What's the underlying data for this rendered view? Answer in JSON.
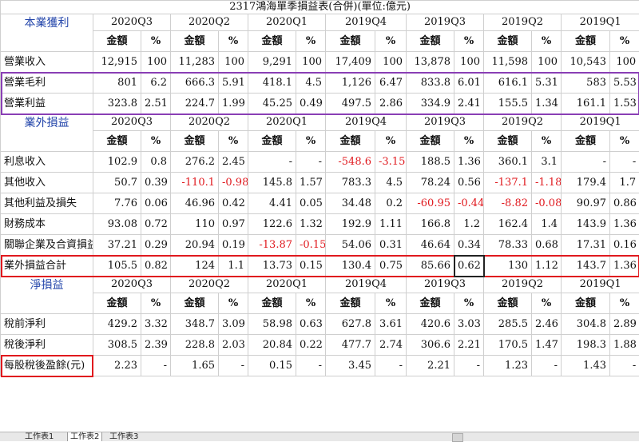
{
  "title": "2317鴻海單季損益表(合併)(單位:億元)",
  "periods": [
    "2020Q3",
    "2020Q2",
    "2020Q1",
    "2019Q4",
    "2019Q3",
    "2019Q2",
    "2019Q1"
  ],
  "col_amount": "金額",
  "col_pct": "%",
  "sections": [
    {
      "name": "本業獲利",
      "rows": [
        {
          "label": "營業收入",
          "cells": [
            "12,915",
            "100",
            "11,283",
            "100",
            "9,291",
            "100",
            "17,409",
            "100",
            "13,878",
            "100",
            "11,598",
            "100",
            "10,543",
            "100"
          ]
        },
        {
          "label": "營業毛利",
          "cells": [
            "801",
            "6.2",
            "666.3",
            "5.91",
            "418.1",
            "4.5",
            "1,126",
            "6.47",
            "833.8",
            "6.01",
            "616.1",
            "5.31",
            "583",
            "5.53"
          ]
        },
        {
          "label": "營業利益",
          "cells": [
            "323.8",
            "2.51",
            "224.7",
            "1.99",
            "45.25",
            "0.49",
            "497.5",
            "2.86",
            "334.9",
            "2.41",
            "155.5",
            "1.34",
            "161.1",
            "1.53"
          ]
        }
      ]
    },
    {
      "name": "業外損益",
      "rows": [
        {
          "label": "利息收入",
          "cells": [
            "102.9",
            "0.8",
            "276.2",
            "2.45",
            "-",
            "-",
            "-548.6",
            "-3.15",
            "188.5",
            "1.36",
            "360.1",
            "3.1",
            "-",
            "-"
          ]
        },
        {
          "label": "其他收入",
          "cells": [
            "50.7",
            "0.39",
            "-110.1",
            "-0.98",
            "145.8",
            "1.57",
            "783.3",
            "4.5",
            "78.24",
            "0.56",
            "-137.1",
            "-1.18",
            "179.4",
            "1.7"
          ]
        },
        {
          "label": "其他利益及損失",
          "cells": [
            "7.76",
            "0.06",
            "46.96",
            "0.42",
            "4.41",
            "0.05",
            "34.48",
            "0.2",
            "-60.95",
            "-0.44",
            "-8.82",
            "-0.08",
            "90.97",
            "0.86"
          ]
        },
        {
          "label": "財務成本",
          "cells": [
            "93.08",
            "0.72",
            "110",
            "0.97",
            "122.6",
            "1.32",
            "192.9",
            "1.11",
            "166.8",
            "1.2",
            "162.4",
            "1.4",
            "143.9",
            "1.36"
          ]
        },
        {
          "label": "關聯企業及合資損益",
          "cells": [
            "37.21",
            "0.29",
            "20.94",
            "0.19",
            "-13.87",
            "-0.15",
            "54.06",
            "0.31",
            "46.64",
            "0.34",
            "78.33",
            "0.68",
            "17.31",
            "0.16"
          ]
        },
        {
          "label": "業外損益合計",
          "cells": [
            "105.5",
            "0.82",
            "124",
            "1.1",
            "13.73",
            "0.15",
            "130.4",
            "0.75",
            "85.66",
            "0.62",
            "130",
            "1.12",
            "143.7",
            "1.36"
          ]
        }
      ]
    },
    {
      "name": "淨損益",
      "rows": [
        {
          "label": "稅前淨利",
          "cells": [
            "429.2",
            "3.32",
            "348.7",
            "3.09",
            "58.98",
            "0.63",
            "627.8",
            "3.61",
            "420.6",
            "3.03",
            "285.5",
            "2.46",
            "304.8",
            "2.89"
          ]
        },
        {
          "label": "稅後淨利",
          "cells": [
            "308.5",
            "2.39",
            "228.8",
            "2.03",
            "20.84",
            "0.22",
            "477.7",
            "2.74",
            "306.6",
            "2.21",
            "170.5",
            "1.47",
            "198.3",
            "1.88"
          ]
        },
        {
          "label": "每股稅後盈餘(元)",
          "cells": [
            "2.23",
            "-",
            "1.65",
            "-",
            "0.15",
            "-",
            "3.45",
            "-",
            "2.21",
            "-",
            "1.23",
            "-",
            "1.43",
            "-"
          ]
        }
      ]
    }
  ],
  "sheet_tabs": [
    "工作表1",
    "工作表2",
    "工作表3"
  ],
  "colors": {
    "section_bg": "#dce6f1",
    "section_text": "#2244aa",
    "negative": "#e0191e",
    "purple_box": "#8a3fb5",
    "red_box": "#e0191e",
    "cell_box": "#222222"
  }
}
